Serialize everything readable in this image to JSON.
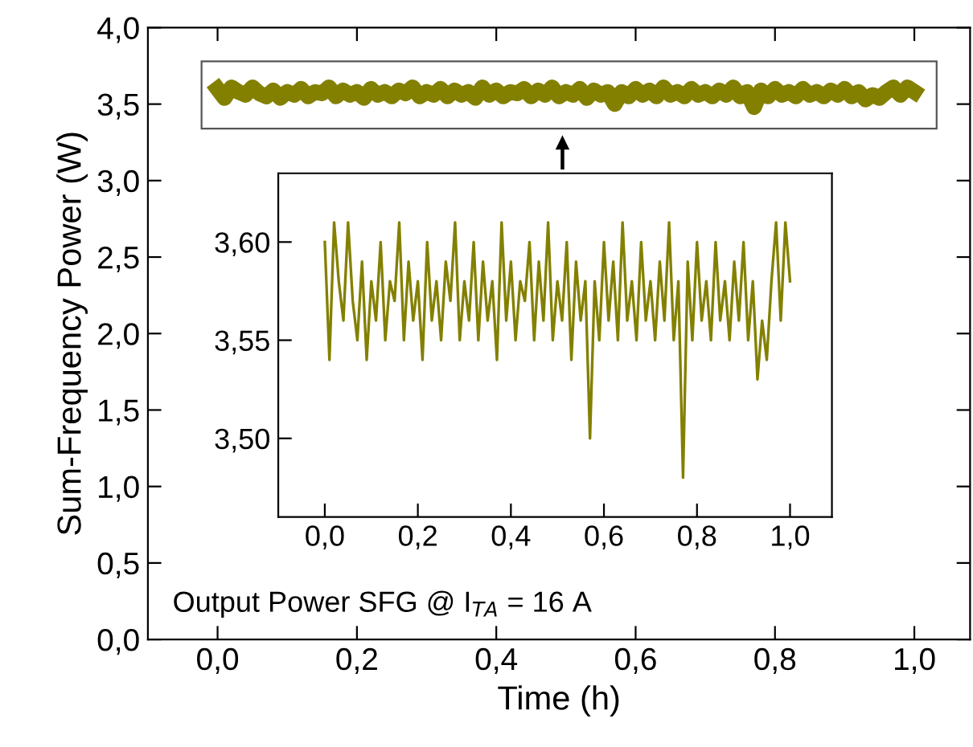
{
  "chart_data": [
    {
      "type": "line",
      "xlabel": "Time (h)",
      "ylabel": "Sum-Frequency Power (W)",
      "xlim": [
        -0.1,
        1.08
      ],
      "ylim": [
        0,
        4
      ],
      "xticks": [
        {
          "value": 0,
          "label": "0,0"
        },
        {
          "value": 0.2,
          "label": "0,2"
        },
        {
          "value": 0.4,
          "label": "0,4"
        },
        {
          "value": 0.6,
          "label": "0,6"
        },
        {
          "value": 0.8,
          "label": "0,8"
        },
        {
          "value": 1,
          "label": "1,0"
        }
      ],
      "yticks": [
        {
          "value": 0,
          "label": "0,0"
        },
        {
          "value": 0.5,
          "label": "0,5"
        },
        {
          "value": 1,
          "label": "1,0"
        },
        {
          "value": 1.5,
          "label": "1,5"
        },
        {
          "value": 2,
          "label": "2,0"
        },
        {
          "value": 2.5,
          "label": "2,5"
        },
        {
          "value": 3,
          "label": "3,0"
        },
        {
          "value": 3.5,
          "label": "3,5"
        },
        {
          "value": 4,
          "label": "4,0"
        }
      ],
      "grid": false,
      "marker": "none",
      "line_style": "solid",
      "annotations": [
        "Output Power SFG @ I$_{TA}$ = 16 A"
      ],
      "x": [
        0,
        0.01,
        0.02,
        0.03,
        0.04,
        0.05,
        0.06,
        0.07,
        0.08,
        0.09,
        0.1,
        0.11,
        0.12,
        0.13,
        0.14,
        0.15,
        0.16,
        0.17,
        0.18,
        0.19,
        0.2,
        0.21,
        0.22,
        0.23,
        0.24,
        0.25,
        0.26,
        0.27,
        0.28,
        0.29,
        0.3,
        0.31,
        0.32,
        0.33,
        0.34,
        0.35,
        0.36,
        0.37,
        0.38,
        0.39,
        0.4,
        0.41,
        0.42,
        0.43,
        0.44,
        0.45,
        0.46,
        0.47,
        0.48,
        0.49,
        0.5,
        0.51,
        0.52,
        0.53,
        0.54,
        0.55,
        0.56,
        0.57,
        0.58,
        0.59,
        0.6,
        0.61,
        0.62,
        0.63,
        0.64,
        0.65,
        0.66,
        0.67,
        0.68,
        0.69,
        0.7,
        0.71,
        0.72,
        0.73,
        0.74,
        0.75,
        0.76,
        0.77,
        0.78,
        0.79,
        0.8,
        0.81,
        0.82,
        0.83,
        0.84,
        0.85,
        0.86,
        0.87,
        0.88,
        0.89,
        0.9,
        0.91,
        0.92,
        0.93,
        0.94,
        0.95,
        0.96,
        0.97,
        0.98,
        0.99,
        1.0
      ],
      "series": [
        {
          "color": "#838000",
          "values": [
            3.6,
            3.54,
            3.61,
            3.58,
            3.56,
            3.61,
            3.57,
            3.55,
            3.59,
            3.54,
            3.58,
            3.56,
            3.6,
            3.55,
            3.58,
            3.57,
            3.61,
            3.55,
            3.59,
            3.56,
            3.58,
            3.54,
            3.6,
            3.56,
            3.58,
            3.55,
            3.59,
            3.57,
            3.61,
            3.55,
            3.58,
            3.56,
            3.6,
            3.55,
            3.59,
            3.56,
            3.58,
            3.54,
            3.61,
            3.56,
            3.59,
            3.55,
            3.58,
            3.57,
            3.6,
            3.55,
            3.59,
            3.56,
            3.61,
            3.55,
            3.58,
            3.56,
            3.6,
            3.54,
            3.59,
            3.56,
            3.58,
            3.5,
            3.58,
            3.55,
            3.6,
            3.56,
            3.59,
            3.55,
            3.61,
            3.56,
            3.58,
            3.55,
            3.6,
            3.56,
            3.58,
            3.55,
            3.59,
            3.56,
            3.61,
            3.55,
            3.58,
            3.48,
            3.59,
            3.55,
            3.6,
            3.56,
            3.58,
            3.55,
            3.6,
            3.56,
            3.58,
            3.55,
            3.59,
            3.56,
            3.6,
            3.55,
            3.58,
            3.53,
            3.56,
            3.54,
            3.58,
            3.61,
            3.56,
            3.61,
            3.58
          ]
        }
      ]
    },
    {
      "type": "line",
      "xlim": [
        -0.1,
        1.09
      ],
      "ylim": [
        3.46,
        3.635
      ],
      "xticks": [
        {
          "value": 0,
          "label": "0,0"
        },
        {
          "value": 0.2,
          "label": "0,2"
        },
        {
          "value": 0.4,
          "label": "0,4"
        },
        {
          "value": 0.6,
          "label": "0,6"
        },
        {
          "value": 0.8,
          "label": "0,8"
        },
        {
          "value": 1,
          "label": "1,0"
        }
      ],
      "yticks": [
        {
          "value": 3.5,
          "label": "3,50"
        },
        {
          "value": 3.55,
          "label": "3,55"
        },
        {
          "value": 3.6,
          "label": "3,60"
        }
      ],
      "grid": false,
      "marker": "none",
      "line_style": "solid",
      "x": [
        0,
        0.01,
        0.02,
        0.03,
        0.04,
        0.05,
        0.06,
        0.07,
        0.08,
        0.09,
        0.1,
        0.11,
        0.12,
        0.13,
        0.14,
        0.15,
        0.16,
        0.17,
        0.18,
        0.19,
        0.2,
        0.21,
        0.22,
        0.23,
        0.24,
        0.25,
        0.26,
        0.27,
        0.28,
        0.29,
        0.3,
        0.31,
        0.32,
        0.33,
        0.34,
        0.35,
        0.36,
        0.37,
        0.38,
        0.39,
        0.4,
        0.41,
        0.42,
        0.43,
        0.44,
        0.45,
        0.46,
        0.47,
        0.48,
        0.49,
        0.5,
        0.51,
        0.52,
        0.53,
        0.54,
        0.55,
        0.56,
        0.57,
        0.58,
        0.59,
        0.6,
        0.61,
        0.62,
        0.63,
        0.64,
        0.65,
        0.66,
        0.67,
        0.68,
        0.69,
        0.7,
        0.71,
        0.72,
        0.73,
        0.74,
        0.75,
        0.76,
        0.77,
        0.78,
        0.79,
        0.8,
        0.81,
        0.82,
        0.83,
        0.84,
        0.85,
        0.86,
        0.87,
        0.88,
        0.89,
        0.9,
        0.91,
        0.92,
        0.93,
        0.94,
        0.95,
        0.96,
        0.97,
        0.98,
        0.99,
        1.0
      ],
      "series": [
        {
          "color": "#838000",
          "values": [
            3.6,
            3.54,
            3.61,
            3.58,
            3.56,
            3.61,
            3.57,
            3.55,
            3.59,
            3.54,
            3.58,
            3.56,
            3.6,
            3.55,
            3.58,
            3.57,
            3.61,
            3.55,
            3.59,
            3.56,
            3.58,
            3.54,
            3.6,
            3.56,
            3.58,
            3.55,
            3.59,
            3.57,
            3.61,
            3.55,
            3.58,
            3.56,
            3.6,
            3.55,
            3.59,
            3.56,
            3.58,
            3.54,
            3.61,
            3.56,
            3.59,
            3.55,
            3.58,
            3.57,
            3.6,
            3.55,
            3.59,
            3.56,
            3.61,
            3.55,
            3.58,
            3.56,
            3.6,
            3.54,
            3.59,
            3.56,
            3.58,
            3.5,
            3.58,
            3.55,
            3.6,
            3.56,
            3.59,
            3.55,
            3.61,
            3.56,
            3.58,
            3.55,
            3.6,
            3.56,
            3.58,
            3.55,
            3.59,
            3.56,
            3.61,
            3.55,
            3.58,
            3.48,
            3.59,
            3.55,
            3.6,
            3.56,
            3.58,
            3.55,
            3.6,
            3.56,
            3.58,
            3.55,
            3.59,
            3.56,
            3.6,
            3.55,
            3.58,
            3.53,
            3.56,
            3.54,
            3.58,
            3.61,
            3.56,
            3.61,
            3.58
          ]
        }
      ]
    }
  ]
}
